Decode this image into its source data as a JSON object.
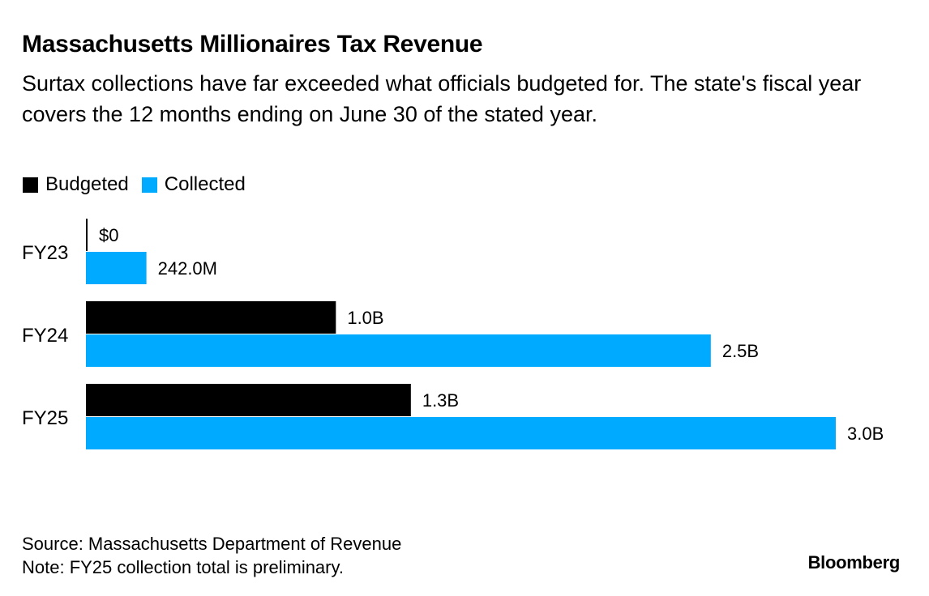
{
  "header": {
    "title": "Massachusetts Millionaires Tax Revenue",
    "subtitle": "Surtax collections have far exceeded what officials budgeted for. The state's fiscal year covers the 12 months ending on June 30 of the stated year."
  },
  "legend": {
    "budgeted_label": "Budgeted",
    "collected_label": "Collected"
  },
  "colors": {
    "budgeted": "#000000",
    "collected": "#00aaff"
  },
  "chart_data": {
    "type": "bar",
    "orientation": "horizontal",
    "title": "Massachusetts Millionaires Tax Revenue",
    "categories": [
      "FY23",
      "FY24",
      "FY25"
    ],
    "series": [
      {
        "name": "Budgeted",
        "values": [
          0,
          1.0,
          1.3
        ],
        "labels": [
          "$0",
          "1.0B",
          "1.3B"
        ]
      },
      {
        "name": "Collected",
        "values": [
          0.242,
          2.5,
          3.0
        ],
        "labels": [
          "242.0M",
          "2.5B",
          "3.0B"
        ]
      }
    ],
    "units": "billions of dollars",
    "xlim": [
      0,
      3.0
    ],
    "grid": false,
    "legend_position": "top-left"
  },
  "footer": {
    "source": "Source: Massachusetts Department of Revenue",
    "note": "Note: FY25 collection total is preliminary."
  },
  "brand": "Bloomberg"
}
